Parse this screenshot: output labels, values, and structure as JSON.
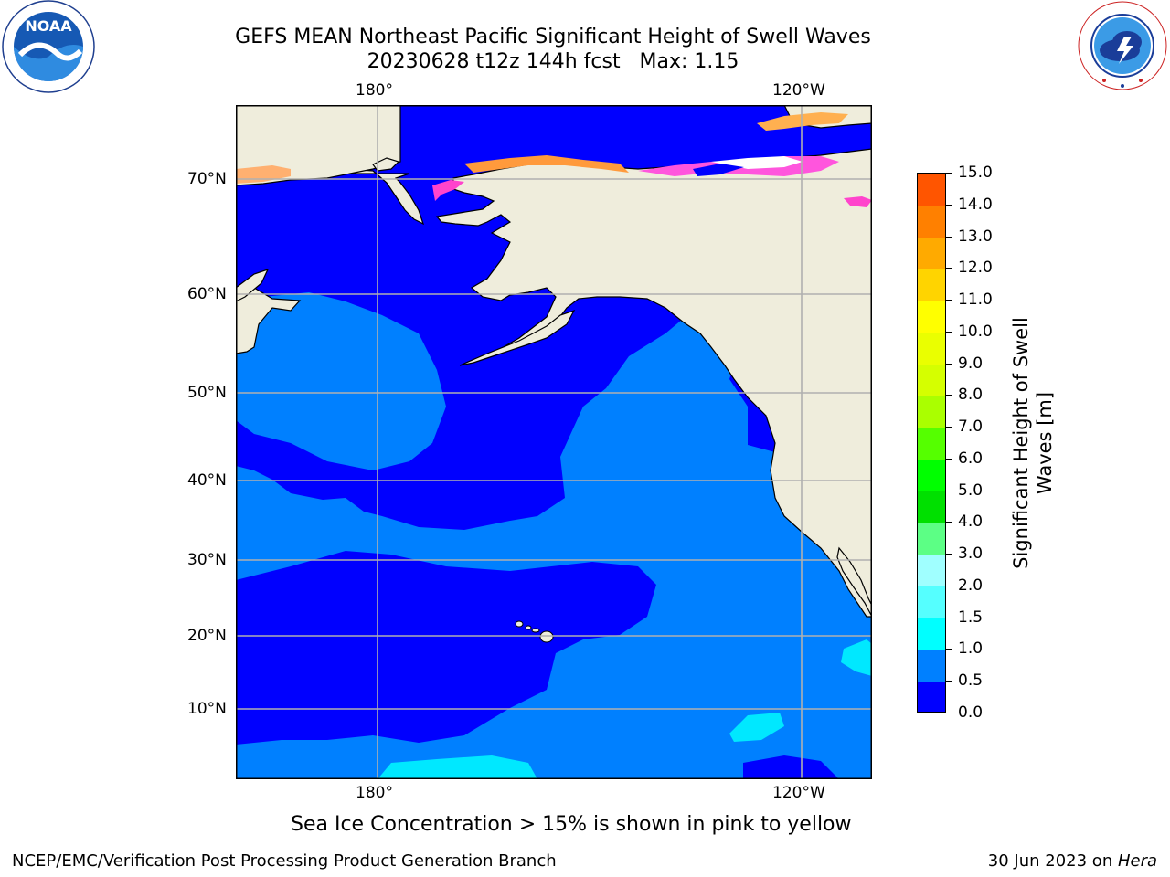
{
  "title": {
    "line1": "GEFS MEAN Northeast Pacific Significant Height of Swell Waves",
    "line2": "20230628 t12z 144h fcst   Max: 1.15"
  },
  "map": {
    "lon_ticks_top": [
      "180°",
      "120°W"
    ],
    "lon_ticks_bottom": [
      "180°",
      "120°W"
    ],
    "lat_ticks": [
      "70°N",
      "60°N",
      "50°N",
      "40°N",
      "30°N",
      "20°N",
      "10°N"
    ],
    "colors": {
      "land": "#efeddc",
      "ice": "#ffffff",
      "bin_0_0_5": "#0000ff",
      "bin_0_5_1_0": "#0080ff",
      "bin_1_0_1_5": "#00e8ff",
      "grid": "#b0b0b0"
    }
  },
  "colorbar": {
    "title": "Significant Height of Swell Waves [m]",
    "ticks": [
      "15.0",
      "14.0",
      "13.0",
      "12.0",
      "11.0",
      "10.0",
      "9.0",
      "8.0",
      "7.0",
      "6.0",
      "5.0",
      "4.0",
      "3.0",
      "2.0",
      "1.5",
      "1.0",
      "0.5",
      "0.0"
    ],
    "colors": [
      "#ff0000",
      "#ff2a00",
      "#ff5500",
      "#ff8000",
      "#ffaa00",
      "#ffd400",
      "#ffff00",
      "#eaff00",
      "#d5ff00",
      "#aaff00",
      "#55ff00",
      "#00ff00",
      "#00e000",
      "#5cff85",
      "#a0ffff",
      "#55ffff",
      "#00ffff",
      "#0080ff",
      "#0000ff"
    ]
  },
  "notes": {
    "ice": "Sea Ice Concentration > 15% is shown in pink to yellow"
  },
  "footer": {
    "left": "NCEP/EMC/Verification Post Processing Product Generation Branch",
    "right_prefix": "30 Jun 2023 on ",
    "right_machine": "Hera"
  },
  "logos": {
    "left": "NOAA",
    "left_ring": "NATIONAL OCEANIC AND ATMOSPHERIC ADMINISTRATION · U.S. DEPARTMENT OF COMMERCE",
    "right_ring": "NATIONAL WEATHER SERVICE"
  }
}
